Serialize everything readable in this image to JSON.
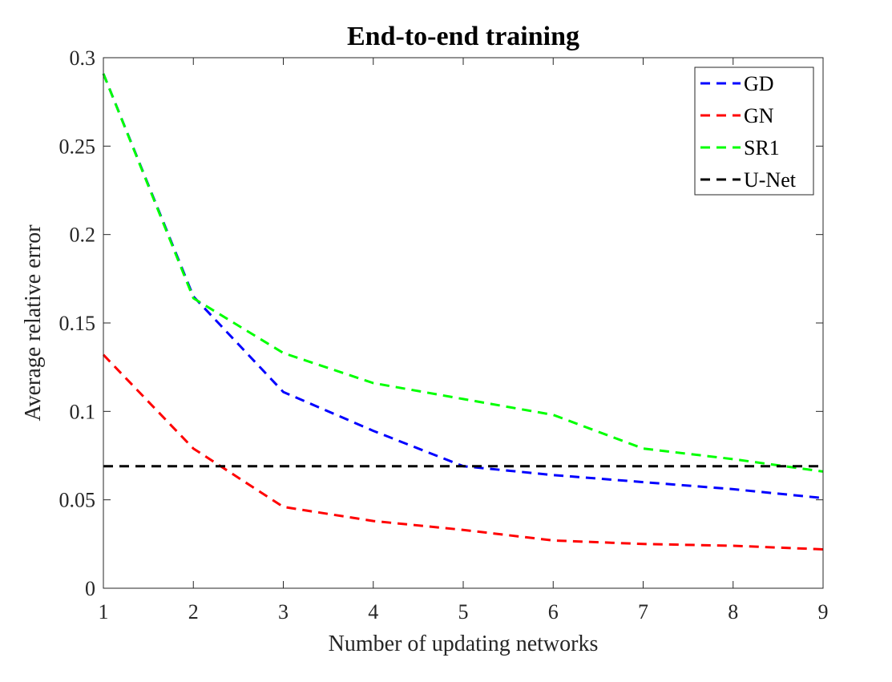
{
  "chart_data": {
    "type": "line",
    "title": "End-to-end training",
    "xlabel": "Number of updating networks",
    "ylabel": "Average relative error",
    "x": [
      1,
      2,
      3,
      4,
      5,
      6,
      7,
      8,
      9
    ],
    "xlim": [
      1,
      9
    ],
    "ylim": [
      0,
      0.3
    ],
    "xticks": [
      1,
      2,
      3,
      4,
      5,
      6,
      7,
      8,
      9
    ],
    "xtick_labels": [
      "1",
      "2",
      "3",
      "4",
      "5",
      "6",
      "7",
      "8",
      "9"
    ],
    "yticks": [
      0,
      0.05,
      0.1,
      0.15,
      0.2,
      0.25,
      0.3
    ],
    "ytick_labels": [
      "0",
      "0.05",
      "0.1",
      "0.15",
      "0.2",
      "0.25",
      "0.3"
    ],
    "grid": false,
    "legend_position": "top-right",
    "series": [
      {
        "name": "GD",
        "color": "#0000ff",
        "style": "dashed",
        "values": [
          0.291,
          0.165,
          0.111,
          0.089,
          0.069,
          0.064,
          0.06,
          0.056,
          0.051
        ]
      },
      {
        "name": "GN",
        "color": "#ff0000",
        "style": "dashed",
        "values": [
          0.132,
          0.079,
          0.046,
          0.038,
          0.033,
          0.027,
          0.025,
          0.024,
          0.022
        ]
      },
      {
        "name": "SR1",
        "color": "#00ff00",
        "style": "dashed",
        "values": [
          0.291,
          0.164,
          0.133,
          0.116,
          0.107,
          0.098,
          0.079,
          0.073,
          0.066
        ]
      },
      {
        "name": "U-Net",
        "color": "#000000",
        "style": "dashed",
        "values": [
          0.069,
          0.069,
          0.069,
          0.069,
          0.069,
          0.069,
          0.069,
          0.069,
          0.069
        ]
      }
    ]
  }
}
